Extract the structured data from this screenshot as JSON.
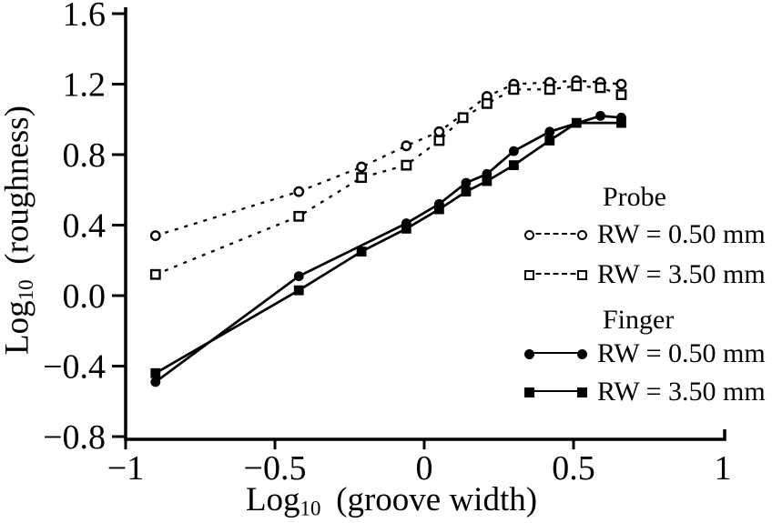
{
  "figure": {
    "background": "#ffffff",
    "ink_color": "#000000"
  },
  "chart_data": {
    "type": "line",
    "title": "",
    "xlabel": {
      "main": "Log",
      "sub": "10",
      "rest": "(groove width)"
    },
    "ylabel": {
      "main": "Log",
      "sub": "10",
      "rest": "(roughness)"
    },
    "xlim": [
      -1,
      1
    ],
    "ylim": [
      -0.8,
      1.6
    ],
    "grid": false,
    "legend_position": "inside-right",
    "xticks": [
      {
        "value": -1,
        "label": "−1"
      },
      {
        "value": -0.5,
        "label": "−0.5"
      },
      {
        "value": 0,
        "label": "0"
      },
      {
        "value": 0.5,
        "label": "0.5"
      },
      {
        "value": 1,
        "label": "1"
      }
    ],
    "yticks": [
      {
        "value": 1.6,
        "label": "1.6"
      },
      {
        "value": 1.2,
        "label": "1.2"
      },
      {
        "value": 0.8,
        "label": "0.8"
      },
      {
        "value": 0.4,
        "label": "0.4"
      },
      {
        "value": 0.0,
        "label": "0.0"
      },
      {
        "value": -0.4,
        "label": "−0.4"
      },
      {
        "value": -0.8,
        "label": "−0.8"
      }
    ],
    "legend": {
      "groups": [
        {
          "title": "Probe",
          "entries": [
            {
              "label": "RW = 0.50 mm",
              "marker": "open-circle",
              "line": "dashed"
            },
            {
              "label": "RW = 3.50 mm",
              "marker": "open-square",
              "line": "dashed"
            }
          ]
        },
        {
          "title": "Finger",
          "entries": [
            {
              "label": "RW = 0.50 mm",
              "marker": "filled-circle",
              "line": "solid"
            },
            {
              "label": "RW = 3.50 mm",
              "marker": "filled-square",
              "line": "solid"
            }
          ]
        }
      ]
    },
    "series": [
      {
        "name": "Probe RW = 0.50 mm",
        "marker": "open-circle",
        "line": "dashed",
        "points": [
          [
            -0.9,
            0.34
          ],
          [
            -0.42,
            0.59
          ],
          [
            -0.21,
            0.73
          ],
          [
            -0.06,
            0.85
          ],
          [
            0.05,
            0.93
          ],
          [
            0.21,
            1.13
          ],
          [
            0.3,
            1.2
          ],
          [
            0.42,
            1.21
          ],
          [
            0.51,
            1.22
          ],
          [
            0.59,
            1.21
          ],
          [
            0.66,
            1.2
          ]
        ]
      },
      {
        "name": "Probe RW = 3.50 mm",
        "marker": "open-square",
        "line": "dashed",
        "points": [
          [
            -0.9,
            0.12
          ],
          [
            -0.42,
            0.45
          ],
          [
            -0.21,
            0.67
          ],
          [
            -0.06,
            0.74
          ],
          [
            0.05,
            0.88
          ],
          [
            0.13,
            1.01
          ],
          [
            0.21,
            1.09
          ],
          [
            0.3,
            1.17
          ],
          [
            0.42,
            1.17
          ],
          [
            0.51,
            1.19
          ],
          [
            0.59,
            1.18
          ],
          [
            0.66,
            1.14
          ]
        ]
      },
      {
        "name": "Finger RW = 0.50 mm",
        "marker": "filled-circle",
        "line": "solid",
        "points": [
          [
            -0.9,
            -0.49
          ],
          [
            -0.42,
            0.11
          ],
          [
            -0.06,
            0.41
          ],
          [
            0.05,
            0.52
          ],
          [
            0.14,
            0.64
          ],
          [
            0.21,
            0.69
          ],
          [
            0.3,
            0.82
          ],
          [
            0.42,
            0.93
          ],
          [
            0.59,
            1.02
          ],
          [
            0.66,
            1.01
          ]
        ]
      },
      {
        "name": "Finger RW = 3.50 mm",
        "marker": "filled-square",
        "line": "solid",
        "points": [
          [
            -0.9,
            -0.44
          ],
          [
            -0.42,
            0.03
          ],
          [
            -0.21,
            0.25
          ],
          [
            -0.06,
            0.38
          ],
          [
            0.05,
            0.49
          ],
          [
            0.14,
            0.59
          ],
          [
            0.21,
            0.65
          ],
          [
            0.3,
            0.74
          ],
          [
            0.42,
            0.88
          ],
          [
            0.51,
            0.98
          ],
          [
            0.66,
            0.98
          ]
        ]
      }
    ]
  }
}
